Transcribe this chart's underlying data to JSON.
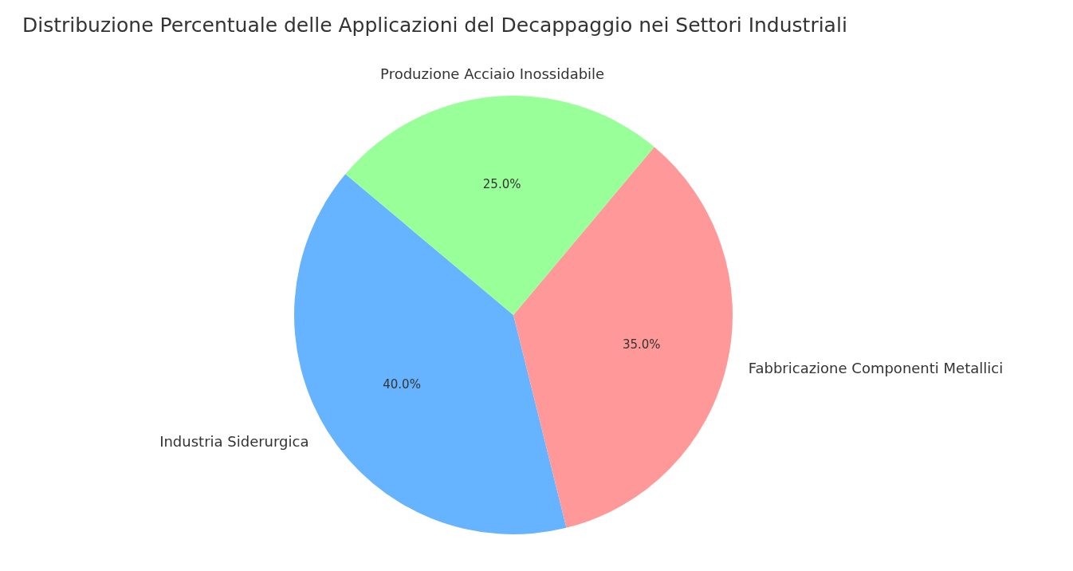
{
  "chart_data": {
    "type": "pie",
    "title": "Distribuzione Percentuale delle Applicazioni del Decappaggio nei Settori Industriali",
    "categories": [
      "Industria Siderurgica",
      "Fabbricazione Componenti Metallici",
      "Produzione Acciaio Inossidabile"
    ],
    "values": [
      40,
      35,
      25
    ],
    "colors": [
      "#66b3ff",
      "#ff9999",
      "#99ff99"
    ],
    "value_labels": [
      "40.0%",
      "35.0%",
      "25.0%"
    ],
    "legend": false
  }
}
